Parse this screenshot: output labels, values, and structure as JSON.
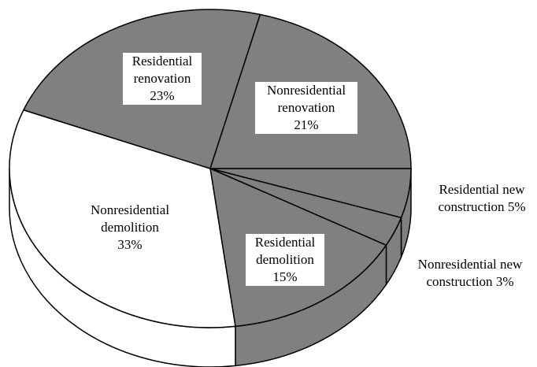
{
  "chart_data": {
    "type": "pie",
    "categories": [
      "Residential new construction",
      "Nonresidential new construction",
      "Residential demolition",
      "Nonresidential demolition",
      "Residential renovation",
      "Nonresidential renovation"
    ],
    "values": [
      5,
      3,
      15,
      33,
      23,
      21
    ],
    "value_labels": [
      "5%",
      "3%",
      "15%",
      "33%",
      "23%",
      "21%"
    ],
    "colors": [
      "#808080",
      "#808080",
      "#808080",
      "#ffffff",
      "#808080",
      "#808080"
    ]
  }
}
